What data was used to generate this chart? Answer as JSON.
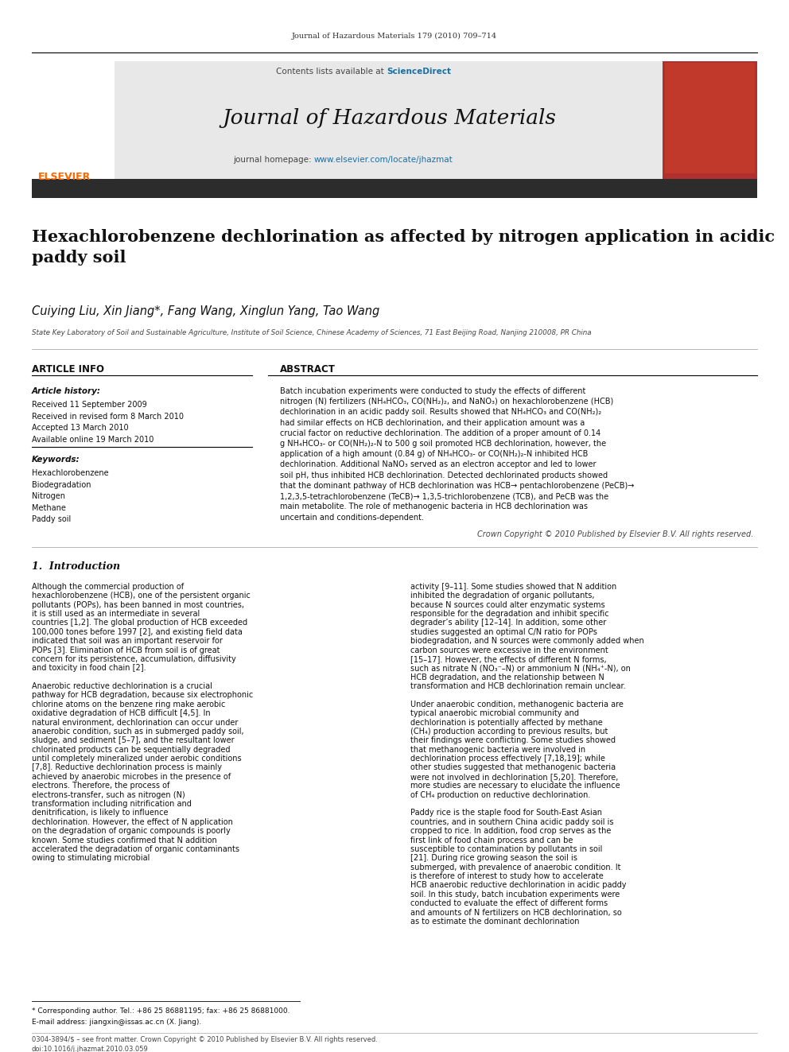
{
  "page_width": 9.92,
  "page_height": 13.23,
  "bg_color": "#ffffff",
  "journal_ref": "Journal of Hazardous Materials 179 (2010) 709–714",
  "journal_name": "Journal of Hazardous Materials",
  "science_direct_color": "#1a6fa3",
  "homepage_url_color": "#1a6fa3",
  "header_bg": "#e8e8e8",
  "dark_bar_color": "#2c2c2c",
  "elsevier_color": "#ff6600",
  "article_title": "Hexachlorobenzene dechlorination as affected by nitrogen application in acidic\npaddy soil",
  "authors": "Cuiying Liu, Xin Jiang*, Fang Wang, Xinglun Yang, Tao Wang",
  "affiliation": "State Key Laboratory of Soil and Sustainable Agriculture, Institute of Soil Science, Chinese Academy of Sciences, 71 East Beijing Road, Nanjing 210008, PR China",
  "article_info_header": "ARTICLE INFO",
  "abstract_header": "ABSTRACT",
  "article_history_label": "Article history:",
  "received1": "Received 11 September 2009",
  "received2": "Received in revised form 8 March 2010",
  "accepted": "Accepted 13 March 2010",
  "available": "Available online 19 March 2010",
  "keywords_label": "Keywords:",
  "keywords": [
    "Hexachlorobenzene",
    "Biodegradation",
    "Nitrogen",
    "Methane",
    "Paddy soil"
  ],
  "abstract_text": "Batch incubation experiments were conducted to study the effects of different nitrogen (N) fertilizers (NH₄HCO₃, CO(NH₂)₂, and NaNO₃) on hexachlorobenzene (HCB) dechlorination in an acidic paddy soil. Results showed that NH₄HCO₃ and CO(NH₂)₂ had similar effects on HCB dechlorination, and their application amount was a crucial factor on reductive dechlorination. The addition of a proper amount of 0.14 g NH₄HCO₃- or CO(NH₂)₂-N to 500 g soil promoted HCB dechlorination, however, the application of a high amount (0.84 g) of NH₄HCO₃- or CO(NH₂)₂-N inhibited HCB dechlorination. Additional NaNO₃ served as an electron acceptor and led to lower soil pH, thus inhibited HCB dechlorination. Detected dechlorinated products showed that the dominant pathway of HCB dechlorination was HCB→ pentachlorobenzene (PeCB)→ 1,2,3,5-tetrachlorobenzene (TeCB)→ 1,3,5-trichlorobenzene (TCB), and PeCB was the main metabolite. The role of methanogenic bacteria in HCB dechlorination was uncertain and conditions-dependent.",
  "copyright_text": "Crown Copyright © 2010 Published by Elsevier B.V. All rights reserved.",
  "intro_header": "1.  Introduction",
  "intro_col1": "Although the commercial production of hexachlorobenzene (HCB), one of the persistent organic pollutants (POPs), has been banned in most countries, it is still used as an intermediate in several countries [1,2]. The global production of HCB exceeded 100,000 tones before 1997 [2], and existing field data indicated that soil was an important reservoir for POPs [3]. Elimination of HCB from soil is of great concern for its persistence, accumulation, diffusivity and toxicity in food chain [2].\n\n    Anaerobic reductive dechlorination is a crucial pathway for HCB degradation, because six electrophonic chlorine atoms on the benzene ring make aerobic oxidative degradation of HCB difficult [4,5]. In natural environment, dechlorination can occur under anaerobic condition, such as in submerged paddy soil, sludge, and sediment [5–7], and the resultant lower chlorinated products can be sequentially degraded until completely mineralized under aerobic conditions [7,8]. Reductive dechlorination process is mainly achieved by anaerobic microbes in the presence of electrons. Therefore, the process of electrons-transfer, such as nitrogen (N) transformation including nitrification and denitrification, is likely to influence dechlorination. However, the effect of N application on the degradation of organic compounds is poorly known. Some studies confirmed that N addition accelerated the degradation of organic contaminants owing to stimulating microbial",
  "intro_col2": "activity [9–11]. Some studies showed that N addition inhibited the degradation of organic pollutants, because N sources could alter enzymatic systems responsible for the degradation and inhibit specific degrader’s ability [12–14]. In addition, some other studies suggested an optimal C/N ratio for POPs biodegradation, and N sources were commonly added when carbon sources were excessive in the environment [15–17]. However, the effects of different N forms, such as nitrate N (NO₃⁻–N) or ammonium N (NH₄⁺-N), on HCB degradation, and the relationship between N transformation and HCB dechlorination remain unclear.\n\n    Under anaerobic condition, methanogenic bacteria are typical anaerobic microbial community and dechlorination is potentially affected by methane (CH₄) production according to previous results, but their findings were conflicting. Some studies showed that methanogenic bacteria were involved in dechlorination process effectively [7,18,19]; while other studies suggested that methanogenic bacteria were not involved in dechlorination [5,20]. Therefore, more studies are necessary to elucidate the influence of CH₄ production on reductive dechlorination.\n\n    Paddy rice is the staple food for South-East Asian countries, and in southern China acidic paddy soil is cropped to rice. In addition, food crop serves as the first link of food chain process and can be susceptible to contamination by pollutants in soil [21]. During rice growing season the soil is submerged, with prevalence of anaerobic condition. It is therefore of interest to study how to accelerate HCB anaerobic reductive dechlorination in acidic paddy soil. In this study, batch incubation experiments were conducted to evaluate the effect of different forms and amounts of N fertilizers on HCB dechlorination, so as to estimate the dominant dechlorination",
  "footer_left": "0304-3894/$ – see front matter. Crown Copyright © 2010 Published by Elsevier B.V. All rights reserved.",
  "footer_doi": "doi:10.1016/j.jhazmat.2010.03.059",
  "corresponding_note": "* Corresponding author. Tel.: +86 25 86881195; fax: +86 25 86881000.",
  "email_note": "E-mail address: jiangxin@issas.ac.cn (X. Jiang)."
}
